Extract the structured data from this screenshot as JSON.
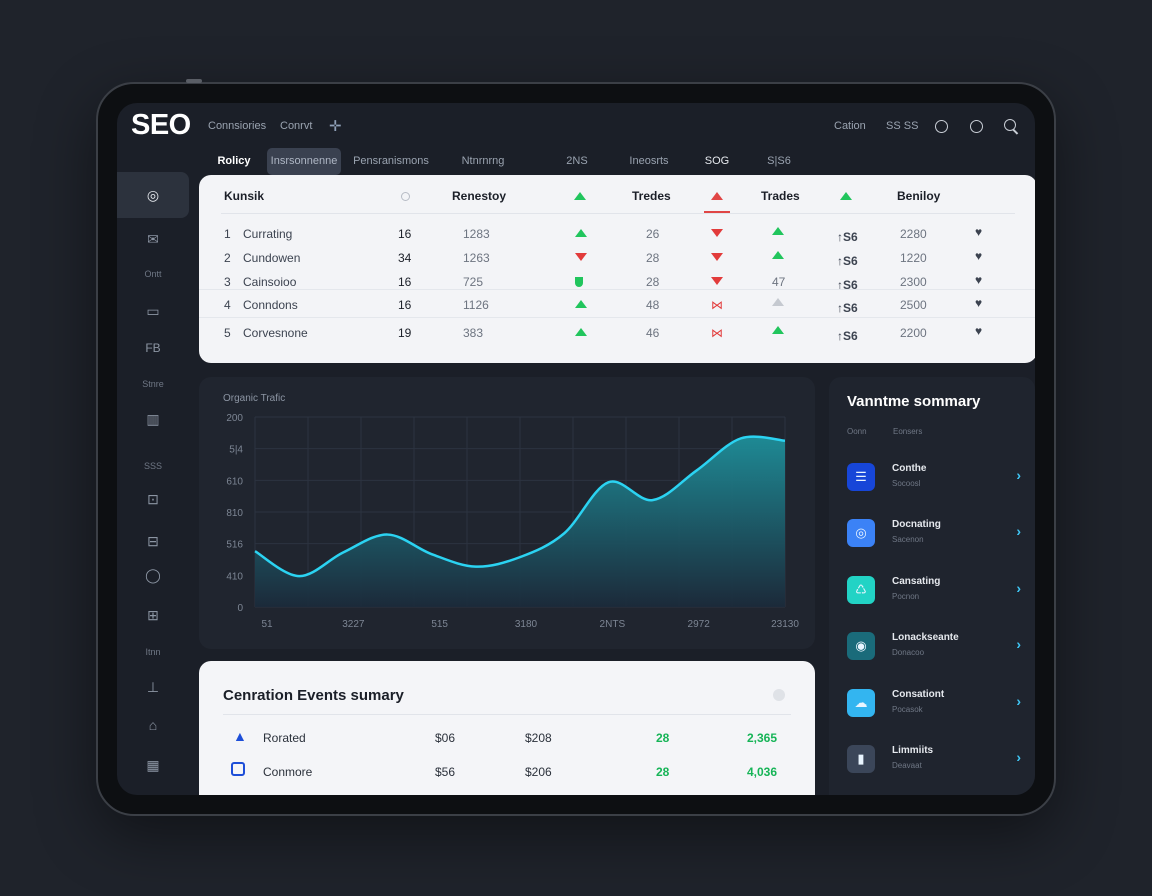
{
  "header": {
    "logo": "SEO",
    "nav": [
      "Connsiories",
      "Conrvt"
    ],
    "right_text": [
      "Cation",
      "SS SS"
    ],
    "icons": [
      "plus-icon",
      "circle-icon",
      "smiley-icon",
      "search-icon"
    ]
  },
  "tabs": [
    "Rolicy",
    "Insrsonnenne",
    "Pensranismons",
    "Ntnrnrng",
    "2NS",
    "Ineosrts",
    "SOG",
    "S|S6"
  ],
  "sidebar": {
    "items": [
      {
        "icon": "chat-icon",
        "label": ""
      },
      {
        "icon": "mail-icon",
        "label": ""
      },
      {
        "icon": "",
        "label": "Ontt"
      },
      {
        "icon": "window-icon",
        "label": ""
      },
      {
        "icon": "grid-icon",
        "label": ""
      },
      {
        "icon": "",
        "label": "Stnre"
      },
      {
        "icon": "bars-icon",
        "label": ""
      },
      {
        "icon": "",
        "label": "SSS"
      },
      {
        "icon": "box-icon",
        "label": ""
      },
      {
        "icon": "truck-icon",
        "label": ""
      },
      {
        "icon": "bubble-icon",
        "label": ""
      },
      {
        "icon": "chart-icon",
        "label": ""
      },
      {
        "icon": "",
        "label": "Itnn"
      },
      {
        "icon": "tree-icon",
        "label": ""
      },
      {
        "icon": "home-icon",
        "label": ""
      },
      {
        "icon": "table-icon",
        "label": ""
      }
    ]
  },
  "keywords_table": {
    "headers": [
      "Kunsik",
      "Renestoy",
      "Tredes",
      "Trades",
      "Beniloy"
    ],
    "rows": [
      {
        "rank": "1",
        "name": "Currating",
        "v1": "16",
        "v2": "1283",
        "t1": "up",
        "v3": "26",
        "t2": "down",
        "t3": "up",
        "mini": "↑S6",
        "v4": "2280",
        "heart": "♥"
      },
      {
        "rank": "2",
        "name": "Cundowen",
        "v1": "34",
        "v2": "1263",
        "t1": "down",
        "v3": "28",
        "t2": "down",
        "t3": "up",
        "mini": "↑S6",
        "v4": "1220",
        "heart": "♥"
      },
      {
        "rank": "3",
        "name": "Cainsoioo",
        "v1": "16",
        "v2": "725",
        "t1": "shield",
        "v3": "28",
        "t2": "down",
        "t3": "47",
        "mini": "↑S6",
        "v4": "2300",
        "heart": "♥"
      },
      {
        "rank": "4",
        "name": "Conndons",
        "v1": "16",
        "v2": "1126",
        "t1": "up",
        "v3": "48",
        "t2": "bow",
        "t3": "gray",
        "mini": "↑S6",
        "v4": "2500",
        "heart": "♥"
      },
      {
        "rank": "5",
        "name": "Corvesnone",
        "v1": "19",
        "v2": "383",
        "t1": "up",
        "v3": "46",
        "t2": "bow",
        "t3": "up",
        "mini": "↑S6",
        "v4": "2200",
        "heart": "♥"
      }
    ]
  },
  "chart_data": {
    "type": "area",
    "title": "Organic Trafic",
    "x_labels": [
      "51",
      "3227",
      "515",
      "3180",
      "2NTS",
      "2972",
      "23130"
    ],
    "y_ticks": [
      "200",
      "5|4",
      "610",
      "810",
      "516",
      "410",
      "0"
    ],
    "x": [
      0,
      0.5,
      1,
      1.5,
      2,
      2.5,
      3,
      3.5,
      4,
      4.5,
      5,
      5.5,
      6
    ],
    "values": [
      470,
      260,
      460,
      610,
      445,
      340,
      420,
      620,
      1050,
      900,
      1150,
      1420,
      1400
    ],
    "ylim": [
      0,
      1600
    ],
    "grid": true,
    "colors": {
      "line": "#2bd3f2",
      "fill_top": "#1e8f9a",
      "fill_bottom": "#1b2a3a"
    }
  },
  "events": {
    "title": "Cenration Events sumary",
    "rows": [
      {
        "icon": "flask-icon",
        "name": "Rorated",
        "a": "$06",
        "b": "$208",
        "c": "28",
        "d": "2,365"
      },
      {
        "icon": "shield-icon",
        "name": "Conmore",
        "a": "$56",
        "b": "$206",
        "c": "28",
        "d": "4,036"
      }
    ]
  },
  "summary": {
    "title": "Vanntme sommary",
    "sub": [
      "Oonn",
      "Eonsers"
    ],
    "items": [
      {
        "name": "Conthe",
        "desc": "Socoosl",
        "color": "#1746d8",
        "glyph": "☰"
      },
      {
        "name": "Docnating",
        "desc": "Sacenon",
        "color": "#3b82f6",
        "glyph": "◎"
      },
      {
        "name": "Cansating",
        "desc": "Pocnon",
        "color": "#22d3c5",
        "glyph": "♺"
      },
      {
        "name": "Lonackseante",
        "desc": "Donacoo",
        "color": "#1a6b7a",
        "glyph": "◉"
      },
      {
        "name": "Consationt",
        "desc": "Pocasok",
        "color": "#33b5f0",
        "glyph": "☁"
      },
      {
        "name": "Limmiits",
        "desc": "Deavaat",
        "color": "#3b4659",
        "glyph": "▮"
      }
    ]
  }
}
